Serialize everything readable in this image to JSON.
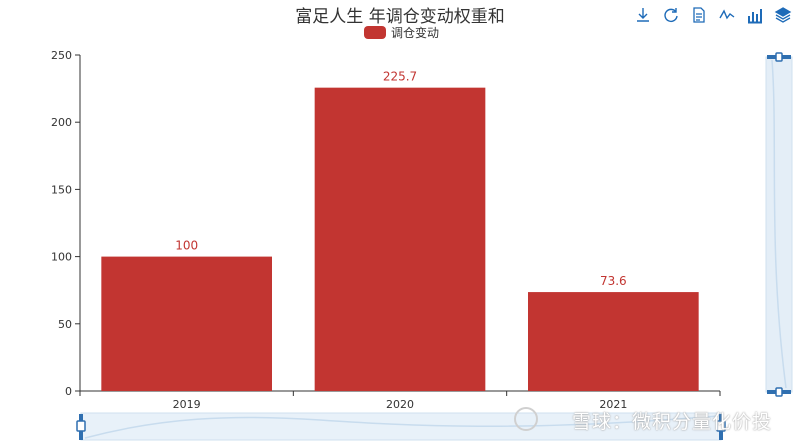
{
  "title": "富足人生 年调仓变动权重和",
  "legend": [
    {
      "name": "调仓变动",
      "color": "#c23531"
    }
  ],
  "toolbox": [
    "download-icon",
    "refresh-icon",
    "data-view-icon",
    "line-chart-icon",
    "bar-chart-icon",
    "stack-icon"
  ],
  "chart_data": {
    "type": "bar",
    "categories": [
      "2019",
      "2020",
      "2021"
    ],
    "series": [
      {
        "name": "调仓变动",
        "values": [
          100,
          225.7,
          73.6
        ],
        "color": "#c23531"
      }
    ],
    "value_labels": [
      "100",
      "225.7",
      "73.6"
    ],
    "y_ticks": [
      "0",
      "50",
      "100",
      "150",
      "200",
      "250"
    ],
    "ylim": [
      0,
      250
    ],
    "grid": false,
    "legend_position": "top-center",
    "title": "富足人生 年调仓变动权重和"
  },
  "watermark": "雪球：微积分量化价投"
}
